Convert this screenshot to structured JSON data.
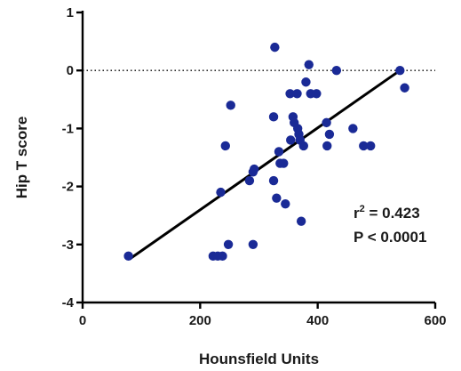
{
  "chart_data": {
    "type": "scatter",
    "title": "",
    "xlabel": "Hounsfield Units",
    "ylabel": "Hip T score",
    "xlim": [
      0,
      600
    ],
    "ylim": [
      -4,
      1
    ],
    "xticks": [
      0,
      200,
      400,
      600
    ],
    "yticks": [
      1,
      0,
      -1,
      -2,
      -3,
      -4
    ],
    "xtick_labels": [
      "0",
      "200",
      "400",
      "600"
    ],
    "ytick_labels": [
      "1",
      "0",
      "-1",
      "-2",
      "-3",
      "-4"
    ],
    "grid": false,
    "reference_line": {
      "y": 0,
      "style": "dotted"
    },
    "regression_line": {
      "x": [
        80,
        540
      ],
      "y": [
        -3.25,
        0.0
      ]
    },
    "point_color": "#1a2a96",
    "line_color": "#000000",
    "points": [
      {
        "x": 78,
        "y": -3.2
      },
      {
        "x": 222,
        "y": -3.2
      },
      {
        "x": 230,
        "y": -3.2
      },
      {
        "x": 238,
        "y": -3.2
      },
      {
        "x": 248,
        "y": -3.0
      },
      {
        "x": 290,
        "y": -3.0
      },
      {
        "x": 235,
        "y": -2.1
      },
      {
        "x": 243,
        "y": -1.3
      },
      {
        "x": 252,
        "y": -0.6
      },
      {
        "x": 284,
        "y": -1.9
      },
      {
        "x": 290,
        "y": -1.75
      },
      {
        "x": 292,
        "y": -1.7
      },
      {
        "x": 327,
        "y": 0.4
      },
      {
        "x": 325,
        "y": -0.8
      },
      {
        "x": 325,
        "y": -1.9
      },
      {
        "x": 330,
        "y": -2.2
      },
      {
        "x": 334,
        "y": -1.4
      },
      {
        "x": 336,
        "y": -1.6
      },
      {
        "x": 342,
        "y": -1.6
      },
      {
        "x": 345,
        "y": -2.3
      },
      {
        "x": 353,
        "y": -0.4
      },
      {
        "x": 354,
        "y": -1.2
      },
      {
        "x": 358,
        "y": -0.8
      },
      {
        "x": 360,
        "y": -0.9
      },
      {
        "x": 365,
        "y": -0.4
      },
      {
        "x": 366,
        "y": -1.0
      },
      {
        "x": 368,
        "y": -1.1
      },
      {
        "x": 370,
        "y": -1.2
      },
      {
        "x": 372,
        "y": -2.6
      },
      {
        "x": 376,
        "y": -1.3
      },
      {
        "x": 380,
        "y": -0.2
      },
      {
        "x": 385,
        "y": 0.1
      },
      {
        "x": 388,
        "y": -0.4
      },
      {
        "x": 398,
        "y": -0.4
      },
      {
        "x": 415,
        "y": -0.9
      },
      {
        "x": 416,
        "y": -1.3
      },
      {
        "x": 420,
        "y": -1.1
      },
      {
        "x": 432,
        "y": 0.0
      },
      {
        "x": 460,
        "y": -1.0
      },
      {
        "x": 478,
        "y": -1.3
      },
      {
        "x": 490,
        "y": -1.3
      },
      {
        "x": 540,
        "y": 0.0
      },
      {
        "x": 548,
        "y": -0.3
      }
    ],
    "annotations": {
      "r2_label": "r",
      "r2_sup": "2",
      "r2_value": " = 0.423",
      "p_text": "P < 0.0001"
    }
  }
}
